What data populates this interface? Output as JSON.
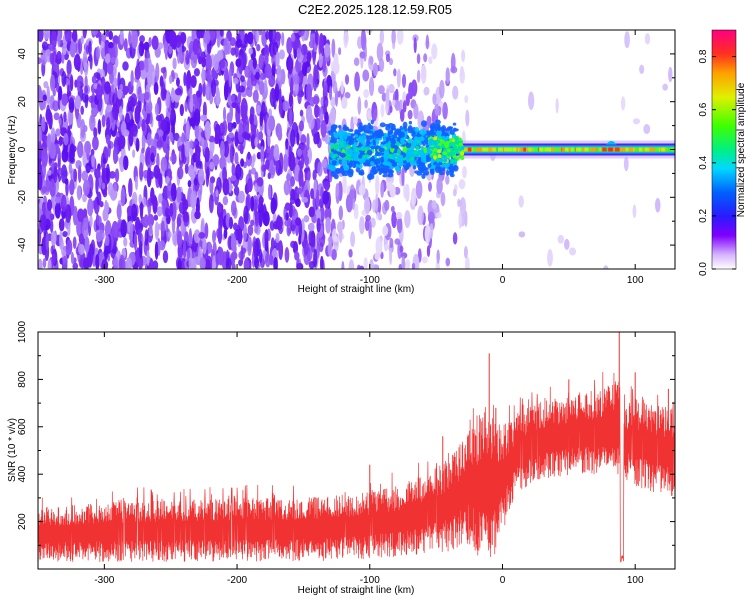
{
  "title": "C2E2.2025.128.12.59.R05",
  "chart_data": [
    {
      "type": "heatmap",
      "xlabel": "Height of straight line (km)",
      "ylabel": "Frequency (Hz)",
      "xlim": [
        -350,
        130
      ],
      "ylim": [
        -50,
        50
      ],
      "xticks": [
        -300,
        -200,
        -100,
        0,
        100
      ],
      "yticks": [
        -40,
        -20,
        0,
        20,
        40
      ],
      "tone_frequency_hz": 0,
      "regions": [
        {
          "x": [
            -350,
            -130
          ],
          "description": "broadband noise, purple speckle"
        },
        {
          "x": [
            -130,
            -35
          ],
          "description": "emerging signal near 0 Hz with diffuse noise"
        },
        {
          "x": [
            -35,
            130
          ],
          "description": "clean narrow tone near 0 Hz, peak amplitude ~0.9"
        }
      ],
      "colorbar": {
        "label": "Normalized spectral amplitude",
        "range": [
          0.0,
          0.9
        ],
        "ticks": [
          0.0,
          0.2,
          0.4,
          0.6,
          0.8
        ]
      }
    },
    {
      "type": "line",
      "xlabel": "Height of straight line (km)",
      "ylabel": "SNR (10 * v/v)",
      "xlim": [
        -350,
        130
      ],
      "ylim": [
        0,
        1000
      ],
      "xticks": [
        -300,
        -200,
        -100,
        0,
        100
      ],
      "yticks": [
        200,
        400,
        600,
        800,
        1000
      ],
      "color": "#f03232",
      "envelope": {
        "x": [
          -350,
          -300,
          -250,
          -200,
          -150,
          -110,
          -80,
          -60,
          -45,
          -35,
          -28,
          -20,
          -10,
          -5,
          0,
          10,
          20,
          40,
          60,
          80,
          88,
          92,
          100,
          115,
          130
        ],
        "low": [
          30,
          30,
          30,
          30,
          30,
          40,
          50,
          60,
          70,
          80,
          120,
          40,
          10,
          60,
          150,
          300,
          350,
          380,
          400,
          400,
          380,
          380,
          350,
          320,
          300
        ],
        "high": [
          260,
          280,
          290,
          300,
          300,
          320,
          350,
          400,
          450,
          500,
          570,
          650,
          700,
          650,
          620,
          650,
          700,
          720,
          740,
          780,
          800,
          700,
          720,
          690,
          680
        ],
        "spikes": [
          [
            -100,
            440
          ],
          [
            -45,
            560
          ],
          [
            -10,
            910
          ],
          [
            -5,
            680
          ],
          [
            50,
            800
          ],
          [
            88,
            1000
          ],
          [
            100,
            830
          ],
          [
            125,
            760
          ]
        ]
      },
      "dip": {
        "x": 90,
        "y": 30
      }
    }
  ]
}
